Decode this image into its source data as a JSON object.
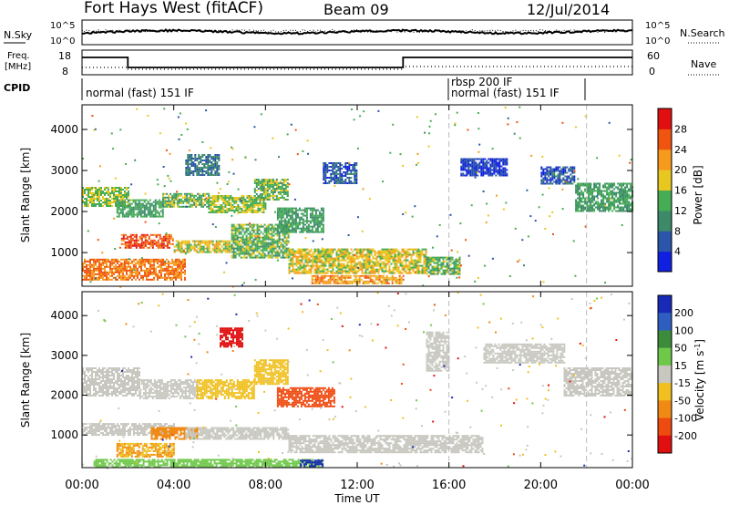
{
  "header": {
    "title": "Fort Hays West (fitACF)",
    "beam": "Beam 09",
    "date": "12/Jul/2014"
  },
  "panel_labels": {
    "nsky": "N.Sky",
    "nsearch": "N.Search",
    "freq_line1": "Freq.",
    "freq_line2": "[MHz]",
    "nave": "Nave",
    "cpid": "CPID"
  },
  "cpid_segments": [
    {
      "label": "normal (fast) 151 IF",
      "start_hour": 0,
      "end_hour": 16.0
    },
    {
      "label": "rbsp 200 IF",
      "start_hour": 16.0,
      "end_hour": 17.7
    },
    {
      "label": "normal (fast) 151 IF",
      "start_hour": 16.0,
      "end_hour": 22.0
    }
  ],
  "noise_axis": {
    "left_ticks": [
      "10^5",
      "10^0"
    ],
    "right_ticks": [
      "10^5",
      "10^0"
    ]
  },
  "freq_axis": {
    "left_ticks": [
      "18",
      "8"
    ],
    "right_ticks": [
      "60",
      "0"
    ]
  },
  "chart_data": [
    {
      "type": "heatmap",
      "title": "Power",
      "xlabel": "Time UT",
      "ylabel": "Slant Range [km]",
      "xlim": [
        0,
        24
      ],
      "ylim": [
        180,
        4600
      ],
      "x_ticks": [
        "00:00",
        "04:00",
        "08:00",
        "12:00",
        "16:00",
        "20:00",
        "00:00"
      ],
      "y_ticks": [
        1000,
        2000,
        3000,
        4000
      ],
      "colorbar": {
        "label": "Power [dB]",
        "ticks": [
          4,
          8,
          12,
          16,
          20,
          24,
          28
        ],
        "colors": [
          "#1020e0",
          "#2a55a8",
          "#3d8a6a",
          "#46ad55",
          "#e8c820",
          "#f59a1c",
          "#ef5410",
          "#e01010"
        ]
      },
      "regions": [
        {
          "t0": 0.0,
          "t1": 2.0,
          "r0": 2150,
          "r1": 2600,
          "level": 16
        },
        {
          "t0": 1.5,
          "t1": 3.5,
          "r0": 1900,
          "r1": 2300,
          "level": 12
        },
        {
          "t0": 3.5,
          "t1": 5.5,
          "r0": 2100,
          "r1": 2450,
          "level": 14
        },
        {
          "t0": 5.5,
          "t1": 8.0,
          "r0": 2000,
          "r1": 2400,
          "level": 16
        },
        {
          "t0": 7.5,
          "t1": 9.0,
          "r0": 2300,
          "r1": 2800,
          "level": 14
        },
        {
          "t0": 1.7,
          "t1": 4.0,
          "r0": 1100,
          "r1": 1450,
          "level": 26
        },
        {
          "t0": 0.0,
          "t1": 4.5,
          "r0": 350,
          "r1": 850,
          "level": 24
        },
        {
          "t0": 4.0,
          "t1": 6.5,
          "r0": 1000,
          "r1": 1300,
          "level": 18
        },
        {
          "t0": 6.5,
          "t1": 9.0,
          "r0": 900,
          "r1": 1700,
          "level": 14
        },
        {
          "t0": 8.5,
          "t1": 10.5,
          "r0": 1500,
          "r1": 2100,
          "level": 12
        },
        {
          "t0": 9.0,
          "t1": 15.0,
          "r0": 500,
          "r1": 1100,
          "level": 18
        },
        {
          "t0": 10.0,
          "t1": 14.0,
          "r0": 250,
          "r1": 450,
          "level": 22
        },
        {
          "t0": 15.0,
          "t1": 16.5,
          "r0": 500,
          "r1": 900,
          "level": 14
        },
        {
          "t0": 4.5,
          "t1": 6.0,
          "r0": 2900,
          "r1": 3400,
          "level": 8
        },
        {
          "t0": 10.5,
          "t1": 12.0,
          "r0": 2700,
          "r1": 3200,
          "level": 6
        },
        {
          "t0": 16.5,
          "t1": 18.5,
          "r0": 2900,
          "r1": 3300,
          "level": 4
        },
        {
          "t0": 20.0,
          "t1": 21.5,
          "r0": 2700,
          "r1": 3100,
          "level": 6
        },
        {
          "t0": 21.5,
          "t1": 24.0,
          "r0": 2000,
          "r1": 2700,
          "level": 12
        }
      ]
    },
    {
      "type": "heatmap",
      "title": "Velocity",
      "xlabel": "Time UT",
      "ylabel": "Slant Range [km]",
      "xlim": [
        0,
        24
      ],
      "ylim": [
        180,
        4600
      ],
      "x_ticks": [
        "00:00",
        "04:00",
        "08:00",
        "12:00",
        "16:00",
        "20:00",
        "00:00"
      ],
      "y_ticks": [
        1000,
        2000,
        3000,
        4000
      ],
      "colorbar": {
        "label_main": "Velocity [m s",
        "label_sup": "-1",
        "label_end": "]",
        "ticks": [
          200,
          100,
          50,
          15,
          -15,
          -50,
          -100,
          -200
        ],
        "colors": [
          "#1a2ab8",
          "#2e5fc0",
          "#3c8c3c",
          "#6ec84a",
          "#c8c8c0",
          "#f0c020",
          "#f08a14",
          "#ef4a10",
          "#e01010"
        ]
      },
      "regions": [
        {
          "t0": 0.0,
          "t1": 2.5,
          "r0": 2000,
          "r1": 2700,
          "level": 0
        },
        {
          "t0": 2.5,
          "t1": 5.0,
          "r0": 1900,
          "r1": 2400,
          "level": 0
        },
        {
          "t0": 5.0,
          "t1": 7.5,
          "r0": 1900,
          "r1": 2400,
          "level": -40
        },
        {
          "t0": 7.5,
          "t1": 9.0,
          "r0": 2300,
          "r1": 2900,
          "level": -40
        },
        {
          "t0": 8.5,
          "t1": 11.0,
          "r0": 1700,
          "r1": 2200,
          "level": -110
        },
        {
          "t0": 6.0,
          "t1": 7.0,
          "r0": 3200,
          "r1": 3700,
          "level": -220
        },
        {
          "t0": 0.0,
          "t1": 4.0,
          "r0": 1000,
          "r1": 1300,
          "level": 0
        },
        {
          "t0": 3.0,
          "t1": 5.0,
          "r0": 900,
          "r1": 1200,
          "level": -60
        },
        {
          "t0": 4.5,
          "t1": 9.0,
          "r0": 900,
          "r1": 1200,
          "level": 0
        },
        {
          "t0": 9.0,
          "t1": 17.5,
          "r0": 550,
          "r1": 1000,
          "level": 0
        },
        {
          "t0": 1.5,
          "t1": 4.0,
          "r0": 450,
          "r1": 800,
          "level": -50
        },
        {
          "t0": 0.5,
          "t1": 10.5,
          "r0": 200,
          "r1": 400,
          "level": 40
        },
        {
          "t0": 9.5,
          "t1": 10.5,
          "r0": 200,
          "r1": 380,
          "level": 250
        },
        {
          "t0": 15.0,
          "t1": 16.0,
          "r0": 2600,
          "r1": 3600,
          "level": 0
        },
        {
          "t0": 17.5,
          "t1": 21.0,
          "r0": 2800,
          "r1": 3300,
          "level": 0
        },
        {
          "t0": 21.0,
          "t1": 24.0,
          "r0": 2000,
          "r1": 2700,
          "level": 0
        }
      ]
    }
  ]
}
